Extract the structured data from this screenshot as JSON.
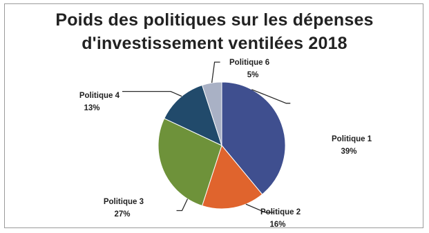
{
  "chart_data": {
    "type": "pie",
    "title_lines": [
      "Poids des politiques sur les dépenses",
      "d'investissement ventilées 2018"
    ],
    "slices": [
      {
        "name": "Politique 1",
        "value": 39,
        "label": "39%",
        "color": "#3f4f8f"
      },
      {
        "name": "Politique 2",
        "value": 16,
        "label": "16%",
        "color": "#e0642d"
      },
      {
        "name": "Politique 3",
        "value": 27,
        "label": "27%",
        "color": "#6e923a"
      },
      {
        "name": "Politique 4",
        "value": 13,
        "label": "13%",
        "color": "#214a6b"
      },
      {
        "name": "Politique 6",
        "value": 5,
        "label": "5%",
        "color": "#a9b1c5"
      }
    ],
    "start_angle_deg": 0,
    "direction": "clockwise",
    "legend": "none",
    "data_labels": "outside-with-leader-lines"
  }
}
